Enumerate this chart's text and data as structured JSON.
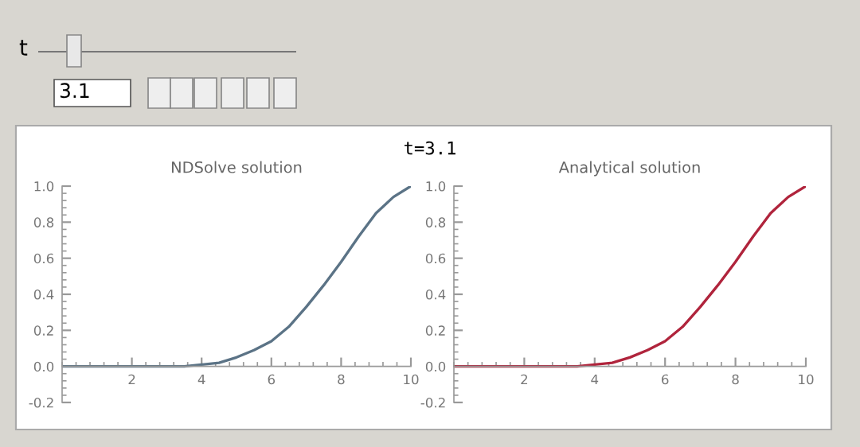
{
  "chart_data": [
    {
      "type": "line",
      "title": "NDSolve solution",
      "annotations": [
        "t",
        "3.1",
        "t=3.1"
      ],
      "x": [
        0,
        1,
        2,
        3,
        3.5,
        4,
        4.5,
        5,
        5.5,
        6,
        6.5,
        7,
        7.5,
        8,
        8.5,
        9,
        9.5,
        10
      ],
      "series": [
        {
          "color": "#5b7386",
          "values": [
            0,
            0,
            0,
            0,
            0,
            0.01,
            0.02,
            0.05,
            0.09,
            0.14,
            0.22,
            0.33,
            0.45,
            0.58,
            0.72,
            0.85,
            0.94,
            1.0
          ]
        }
      ],
      "xlim": [
        0,
        10
      ],
      "ylim": [
        -0.2,
        1.0
      ],
      "xticks": [
        2,
        4,
        6,
        8,
        10
      ],
      "yticks": [
        {
          "value": -0.2,
          "label": "-0.2"
        },
        {
          "value": 0,
          "label": "0.0"
        },
        {
          "value": 0.2,
          "label": "0.2"
        },
        {
          "value": 0.4,
          "label": "0.4"
        },
        {
          "value": 0.6,
          "label": "0.6"
        },
        {
          "value": 0.8,
          "label": "0.8"
        },
        {
          "value": 1.0,
          "label": "1.0"
        }
      ]
    },
    {
      "type": "line",
      "title": "Analytical solution",
      "x": [
        0,
        1,
        2,
        3,
        3.5,
        4,
        4.5,
        5,
        5.5,
        6,
        6.5,
        7,
        7.5,
        8,
        8.5,
        9,
        9.5,
        10
      ],
      "series": [
        {
          "color": "#b0243c",
          "values": [
            0,
            0,
            0,
            0,
            0,
            0.01,
            0.02,
            0.05,
            0.09,
            0.14,
            0.22,
            0.33,
            0.45,
            0.58,
            0.72,
            0.85,
            0.94,
            1.0
          ]
        }
      ],
      "xlim": [
        0,
        10
      ],
      "ylim": [
        -0.2,
        1.0
      ],
      "xticks": [
        2,
        4,
        6,
        8,
        10
      ],
      "yticks": [
        {
          "value": -0.2,
          "label": "-0.2"
        },
        {
          "value": 0,
          "label": "0.0"
        },
        {
          "value": 0.2,
          "label": "0.2"
        },
        {
          "value": 0.4,
          "label": "0.4"
        },
        {
          "value": 0.6,
          "label": "0.6"
        },
        {
          "value": 0.8,
          "label": "0.8"
        },
        {
          "value": 1.0,
          "label": "1.0"
        }
      ]
    }
  ]
}
